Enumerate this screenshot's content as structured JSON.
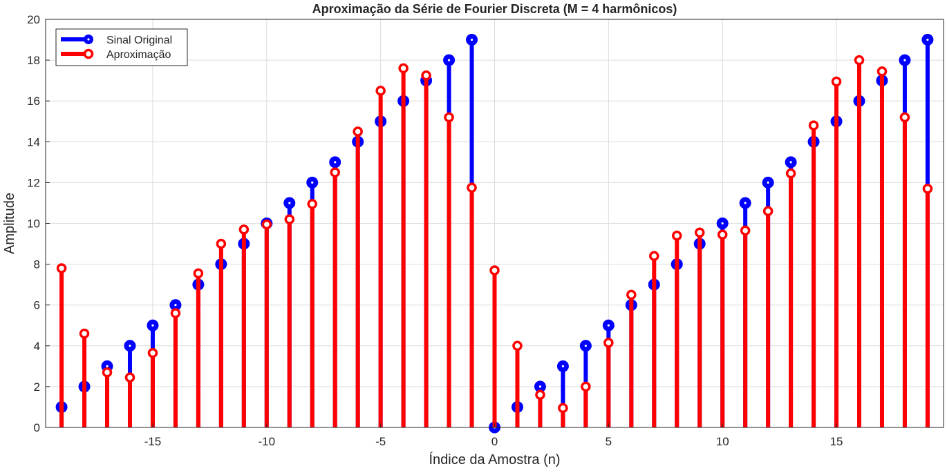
{
  "chart_data": {
    "type": "stem",
    "title": "Aproximação da Série de Fourier Discreta (M = 4 harmônicos)",
    "xlabel": "Índice da Amostra (n)",
    "ylabel": "Amplitude",
    "xlim": [
      -19.7,
      19.7
    ],
    "ylim": [
      0,
      20
    ],
    "x_ticks": [
      -15,
      -10,
      -5,
      0,
      5,
      10,
      15
    ],
    "y_ticks": [
      0,
      2,
      4,
      6,
      8,
      10,
      12,
      14,
      16,
      18,
      20
    ],
    "grid": true,
    "legend_position": "top-left",
    "x": [
      -19,
      -18,
      -17,
      -16,
      -15,
      -14,
      -13,
      -12,
      -11,
      -10,
      -9,
      -8,
      -7,
      -6,
      -5,
      -4,
      -3,
      -2,
      -1,
      0,
      1,
      2,
      3,
      4,
      5,
      6,
      7,
      8,
      9,
      10,
      11,
      12,
      13,
      14,
      15,
      16,
      17,
      18,
      19
    ],
    "series": [
      {
        "name": "Sinal Original",
        "color": "#0000ff",
        "values": [
          1,
          2,
          3,
          4,
          5,
          6,
          7,
          8,
          9,
          10,
          11,
          12,
          13,
          14,
          15,
          16,
          17,
          18,
          19,
          0,
          1,
          2,
          3,
          4,
          5,
          6,
          7,
          8,
          9,
          10,
          11,
          12,
          13,
          14,
          15,
          16,
          17,
          18,
          19
        ]
      },
      {
        "name": "Aproximação",
        "color": "#ff0000",
        "values": [
          7.8,
          4.6,
          2.7,
          2.45,
          3.65,
          5.6,
          7.55,
          9.0,
          9.7,
          9.95,
          10.2,
          10.95,
          12.5,
          14.5,
          16.5,
          17.6,
          17.25,
          15.2,
          11.75,
          7.7,
          4.0,
          1.6,
          0.95,
          2.0,
          4.15,
          6.5,
          8.4,
          9.4,
          9.55,
          9.45,
          9.65,
          10.6,
          12.45,
          14.8,
          16.95,
          18.0,
          17.45,
          15.2,
          11.7
        ]
      }
    ]
  }
}
